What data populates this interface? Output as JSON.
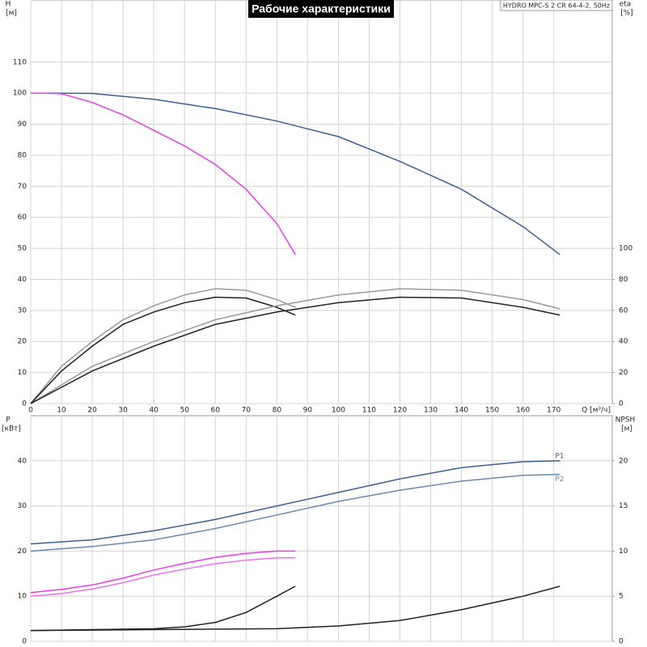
{
  "header": {
    "title": "Рабочие характеристики",
    "model": "HYDRO MPC-S 2 CR 64-4-2, 50Hz"
  },
  "chart_data": [
    {
      "type": "line",
      "ylabel": "H",
      "yunit": "[м]",
      "y2label": "eta",
      "y2unit": "[%]",
      "xlabel": "Q [м³/ч]",
      "xlim": [
        0,
        189
      ],
      "xticks": [
        0,
        10,
        20,
        30,
        40,
        50,
        60,
        70,
        80,
        90,
        100,
        110,
        120,
        130,
        140,
        150,
        160,
        170
      ],
      "show_x_tick_labels": true,
      "ylim": [
        0,
        130
      ],
      "yticks": [
        0,
        10,
        20,
        30,
        40,
        50,
        60,
        70,
        80,
        90,
        100,
        110
      ],
      "y2lim": [
        0,
        260
      ],
      "y2ticks": [
        0,
        20,
        40,
        60,
        80,
        100
      ],
      "grid": true,
      "series": [
        {
          "color": "#3a6190",
          "x": [
            0,
            10,
            20,
            40,
            60,
            80,
            100,
            120,
            140,
            160,
            172
          ],
          "values": [
            100,
            100,
            99.9,
            98,
            95,
            91,
            86,
            78,
            69,
            57,
            48
          ]
        },
        {
          "color": "#e83ce8",
          "x": [
            0,
            5,
            10,
            20,
            30,
            40,
            50,
            60,
            70,
            80,
            86
          ],
          "values": [
            100,
            100,
            99.8,
            97,
            93,
            88,
            83,
            77,
            69,
            58,
            48
          ]
        },
        {
          "color": "#999999",
          "axis": "y2",
          "x": [
            0,
            10,
            20,
            30,
            40,
            50,
            60,
            70,
            80,
            86
          ],
          "values": [
            0,
            24,
            40,
            54,
            63,
            70,
            74,
            73,
            67,
            62
          ]
        },
        {
          "color": "#222222",
          "axis": "y2",
          "x": [
            0,
            10,
            20,
            30,
            40,
            50,
            60,
            70,
            80,
            86
          ],
          "values": [
            0,
            21,
            37,
            51,
            59,
            65,
            68.5,
            68,
            62,
            57
          ]
        },
        {
          "color": "#999999",
          "axis": "y2",
          "x": [
            0,
            20,
            40,
            60,
            80,
            100,
            120,
            140,
            160,
            172
          ],
          "values": [
            0,
            24,
            40,
            54,
            63,
            70,
            74,
            73,
            67,
            61
          ]
        },
        {
          "color": "#222222",
          "axis": "y2",
          "x": [
            0,
            20,
            40,
            60,
            80,
            100,
            120,
            140,
            160,
            172
          ],
          "values": [
            0,
            21,
            37,
            51,
            59,
            65,
            68.5,
            68,
            62,
            57
          ]
        }
      ]
    },
    {
      "type": "line",
      "ylabel": "P",
      "yunit": "[кВт]",
      "y2label": "NPSH",
      "y2unit": "[м]",
      "xlim": [
        0,
        189
      ],
      "xticks": [
        0,
        10,
        20,
        30,
        40,
        50,
        60,
        70,
        80,
        90,
        100,
        110,
        120,
        130,
        140,
        150,
        160,
        170
      ],
      "show_x_tick_labels": false,
      "ylim": [
        0,
        50
      ],
      "yticks": [
        0,
        10,
        20,
        30,
        40
      ],
      "y2lim": [
        0,
        25
      ],
      "y2ticks": [
        0,
        5,
        10,
        15,
        20
      ],
      "grid": true,
      "series": [
        {
          "name": "P1",
          "color": "#3a6190",
          "x": [
            0,
            20,
            40,
            60,
            80,
            100,
            120,
            140,
            160,
            172
          ],
          "values": [
            21.6,
            22.5,
            24.5,
            27,
            30,
            33,
            36,
            38.5,
            39.8,
            40
          ]
        },
        {
          "name": "P2",
          "color": "#6a88b0",
          "x": [
            0,
            20,
            40,
            60,
            80,
            100,
            120,
            140,
            160,
            172
          ],
          "values": [
            20,
            21,
            22.5,
            25,
            28,
            31,
            33.5,
            35.5,
            36.8,
            37
          ]
        },
        {
          "color": "#e83ce8",
          "x": [
            0,
            10,
            20,
            30,
            40,
            50,
            60,
            70,
            80,
            86
          ],
          "values": [
            10.8,
            11.5,
            12.5,
            14,
            15.8,
            17.3,
            18.6,
            19.5,
            20,
            20
          ]
        },
        {
          "color": "#f070f0",
          "x": [
            0,
            10,
            20,
            30,
            40,
            50,
            60,
            70,
            80,
            86
          ],
          "values": [
            10,
            10.6,
            11.6,
            13,
            14.7,
            16,
            17.2,
            18,
            18.5,
            18.5
          ]
        },
        {
          "color": "#222222",
          "axis": "y2",
          "x": [
            0,
            40,
            80,
            100,
            120,
            140,
            160,
            172
          ],
          "values": [
            1.2,
            1.3,
            1.4,
            1.7,
            2.3,
            3.5,
            5,
            6.1
          ]
        },
        {
          "color": "#222222",
          "axis": "y2",
          "x": [
            0,
            20,
            40,
            50,
            60,
            70,
            80,
            86
          ],
          "values": [
            1.2,
            1.3,
            1.4,
            1.6,
            2.1,
            3.2,
            5,
            6.1
          ]
        }
      ]
    }
  ]
}
